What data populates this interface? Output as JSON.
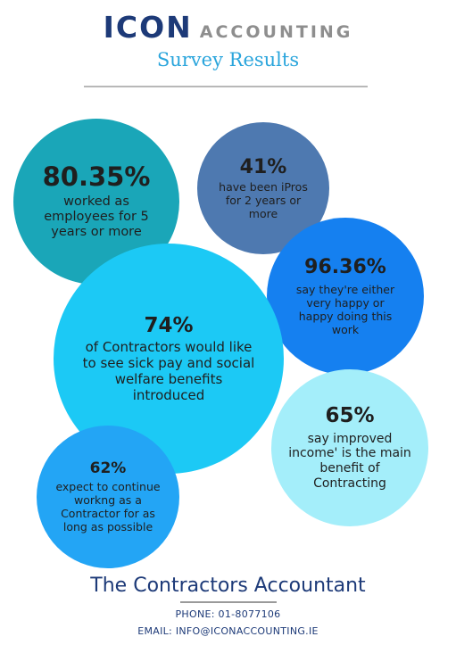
{
  "header": {
    "brand_main": "ICON",
    "brand_sub": "ACCOUNTING",
    "subtitle": "Survey Results"
  },
  "stats": [
    {
      "percent": "80.35%",
      "text": "worked as employees for 5 years or more",
      "color": "#1aa6b8"
    },
    {
      "percent": "41%",
      "text": "have been iPros for 2 years or more",
      "color": "#4e79b0"
    },
    {
      "percent": "96.36%",
      "text": "say they're either very happy or happy doing this work",
      "color": "#1580f0"
    },
    {
      "percent": "74%",
      "text": "of Contractors would like to see sick pay and social welfare benefits introduced",
      "color": "#1cc9f5"
    },
    {
      "percent": "65%",
      "text": "say improved income' is the main benefit of Contracting",
      "color": "#a4eefa"
    },
    {
      "percent": "62%",
      "text": "expect to continue workng as a Contractor for as long as possible",
      "color": "#23a5f5"
    }
  ],
  "footer": {
    "title": "The Contractors Accountant",
    "phone": "PHONE: 01-8077106",
    "email": "EMAIL: INFO@ICONACCOUNTING.IE"
  }
}
